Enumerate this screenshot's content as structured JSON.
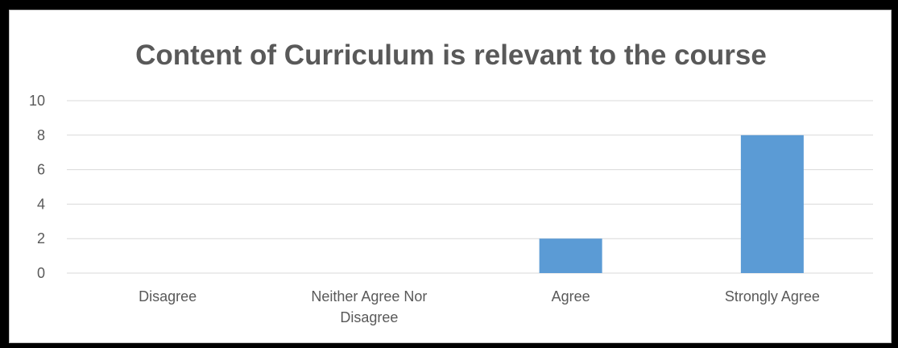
{
  "chart_data": {
    "type": "bar",
    "title": "Content of Curriculum is relevant to the course",
    "categories": [
      [
        "Disagree"
      ],
      [
        "Neither  Agree Nor",
        "Disagree"
      ],
      [
        "Agree"
      ],
      [
        "Strongly Agree"
      ]
    ],
    "values": [
      0,
      0,
      2,
      8
    ],
    "ylim": [
      0,
      10
    ],
    "yticks": [
      0,
      2,
      4,
      6,
      8,
      10
    ],
    "grid": true,
    "legend": "none",
    "colors": {
      "bar": "#5b9bd5",
      "grid": "#d9d9d9",
      "text": "#595959"
    }
  }
}
